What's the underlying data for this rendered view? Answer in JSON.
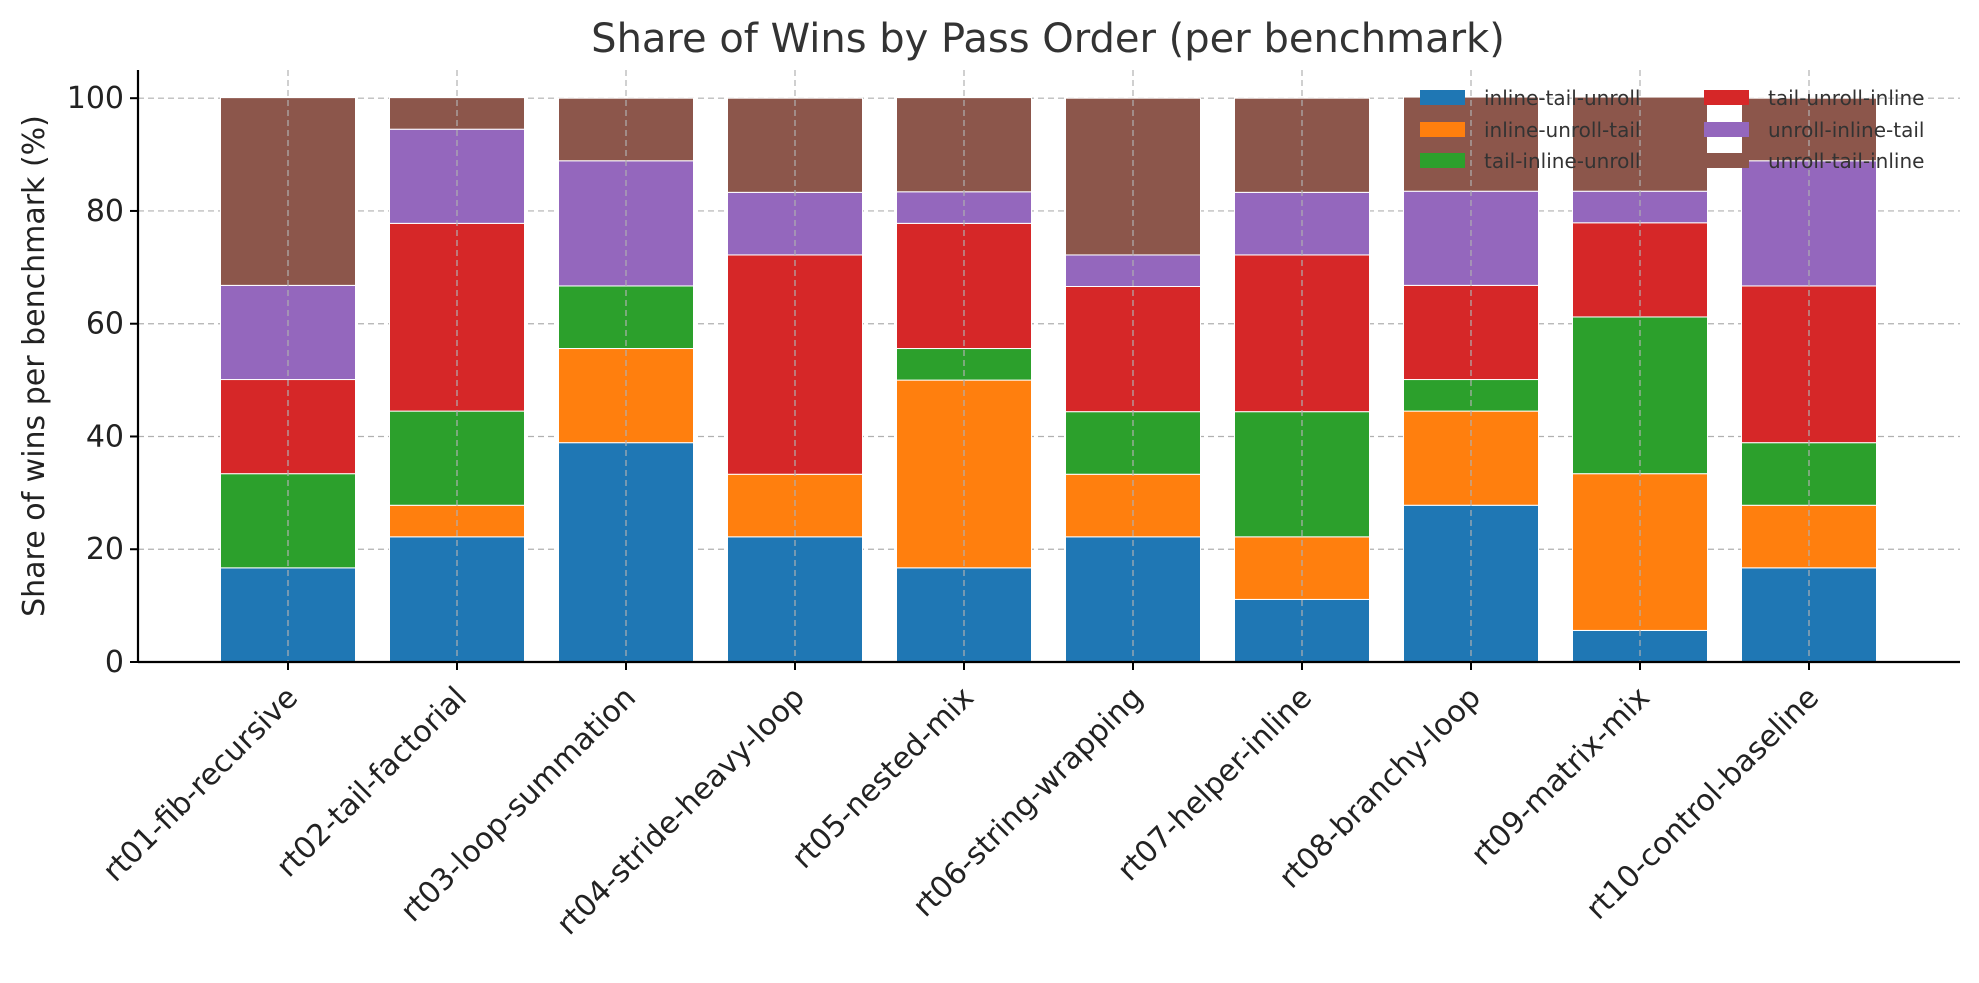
{
  "chart_data": {
    "type": "bar",
    "stacked": true,
    "title": "Share of Wins by Pass Order (per benchmark)",
    "xlabel": "",
    "ylabel": "Share of wins per benchmark (%)",
    "ylim": [
      0,
      105
    ],
    "yticks": [
      0,
      20,
      40,
      60,
      80,
      100
    ],
    "grid": true,
    "legend_position": "top-right",
    "categories": [
      "rt01-fib-recursive",
      "rt02-tail-factorial",
      "rt03-loop-summation",
      "rt04-stride-heavy-loop",
      "rt05-nested-mix",
      "rt06-string-wrapping",
      "rt07-helper-inline",
      "rt08-branchy-loop",
      "rt09-matrix-mix",
      "rt10-control-baseline"
    ],
    "series": [
      {
        "name": "inline-tail-unroll",
        "color": "#1f77b4",
        "values": [
          16.7,
          22.2,
          38.9,
          22.2,
          16.7,
          22.2,
          11.1,
          27.8,
          5.6,
          16.7
        ]
      },
      {
        "name": "inline-unroll-tail",
        "color": "#ff7f0e",
        "values": [
          0.0,
          5.6,
          16.7,
          11.1,
          33.3,
          11.1,
          11.1,
          16.7,
          27.8,
          11.1
        ]
      },
      {
        "name": "tail-inline-unroll",
        "color": "#2ca02c",
        "values": [
          16.7,
          16.7,
          11.1,
          0.0,
          5.6,
          11.1,
          22.2,
          5.6,
          27.8,
          11.1
        ]
      },
      {
        "name": "tail-unroll-inline",
        "color": "#d62728",
        "values": [
          16.7,
          33.3,
          0.0,
          38.9,
          22.2,
          22.2,
          27.8,
          16.7,
          16.7,
          27.8
        ]
      },
      {
        "name": "unroll-inline-tail",
        "color": "#9467bd",
        "values": [
          16.7,
          16.7,
          22.2,
          11.1,
          5.6,
          5.6,
          11.1,
          16.7,
          5.6,
          22.2
        ]
      },
      {
        "name": "unroll-tail-inline",
        "color": "#8c564b",
        "values": [
          33.3,
          5.6,
          11.1,
          16.7,
          16.7,
          27.8,
          16.7,
          16.7,
          16.7,
          11.1
        ]
      }
    ]
  }
}
